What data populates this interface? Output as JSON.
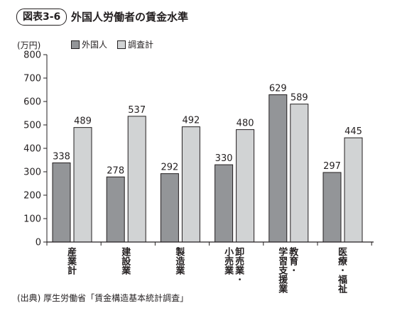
{
  "header": {
    "figure_label": "図表3-6",
    "title": "外国人労働者の賃金水準"
  },
  "unit_label": "(万円)",
  "source_note": "(出典) 厚生労働省「賃金構造基本統計調査」",
  "colors": {
    "foreign": "#939598",
    "survey": "#d1d3d4",
    "outline": "#231f20"
  },
  "chart_data": {
    "type": "bar",
    "categories": [
      "産業計",
      "建設業",
      "製造業",
      "卸売業・小売業",
      "教育・学習支援業",
      "医療・福祉"
    ],
    "category_label_columns": [
      [
        "産業計"
      ],
      [
        "建設業"
      ],
      [
        "製造業"
      ],
      [
        "卸売業・",
        "小売業"
      ],
      [
        "教育・",
        "学習支援業"
      ],
      [
        "医療・福祉"
      ]
    ],
    "series": [
      {
        "name": "外国人",
        "values": [
          338,
          278,
          292,
          330,
          629,
          297
        ]
      },
      {
        "name": "調査計",
        "values": [
          489,
          537,
          492,
          480,
          589,
          445
        ]
      }
    ],
    "ylim": [
      0,
      800
    ],
    "yticks": [
      0,
      100,
      200,
      300,
      400,
      500,
      600,
      700,
      800
    ],
    "ylabel": "(万円)",
    "xlabel": "",
    "legend_position": "top-left",
    "grid": false
  }
}
